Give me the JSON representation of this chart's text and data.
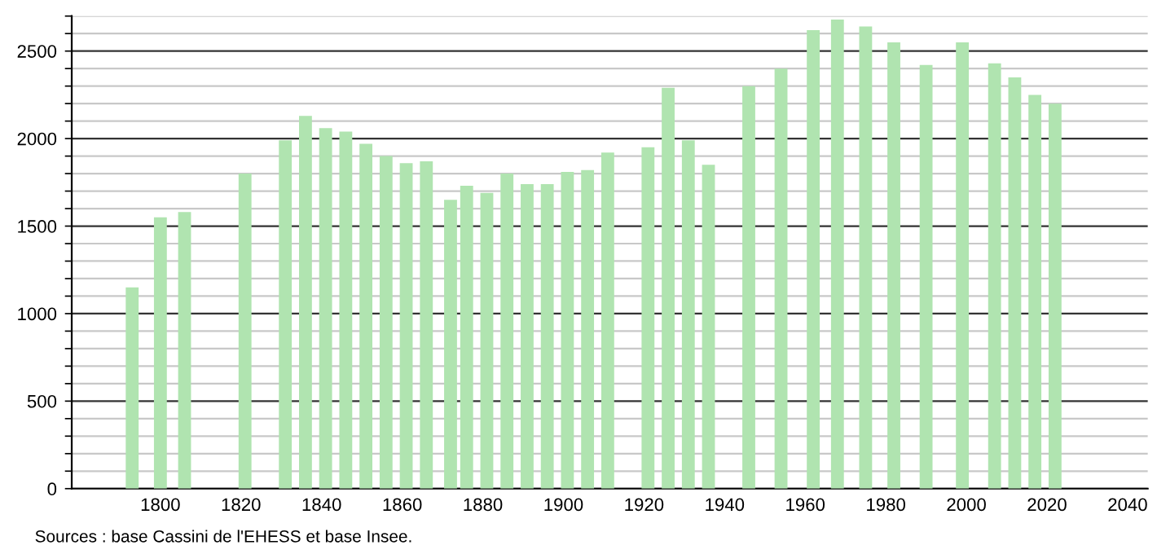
{
  "chart_data": {
    "type": "bar",
    "x": [
      1793,
      1800,
      1806,
      1821,
      1831,
      1836,
      1841,
      1846,
      1851,
      1856,
      1861,
      1866,
      1872,
      1876,
      1881,
      1886,
      1891,
      1896,
      1901,
      1906,
      1911,
      1921,
      1926,
      1931,
      1936,
      1946,
      1954,
      1962,
      1968,
      1975,
      1982,
      1990,
      1999,
      2007,
      2012,
      2017,
      2022
    ],
    "values": [
      1150,
      1550,
      1580,
      1800,
      1990,
      2130,
      2060,
      2040,
      1970,
      1900,
      1860,
      1870,
      1650,
      1730,
      1690,
      1800,
      1740,
      1740,
      1810,
      1820,
      1920,
      1950,
      2290,
      1990,
      1850,
      2300,
      2400,
      2620,
      2680,
      2640,
      2550,
      2420,
      2550,
      2430,
      2350,
      2250,
      2200
    ],
    "color": "#b0e4b0",
    "xlim": [
      1778,
      2045
    ],
    "xticks": [
      1800,
      1820,
      1840,
      1860,
      1880,
      1900,
      1920,
      1940,
      1960,
      1980,
      2000,
      2020,
      2040
    ],
    "ylim": [
      0,
      2700
    ],
    "yticks": [
      0,
      {
        "value": 100,
        "label": null
      },
      {
        "value": 200,
        "label": null
      },
      {
        "value": 300,
        "label": null
      },
      {
        "value": 400,
        "label": null
      },
      500,
      {
        "value": 600,
        "label": null
      },
      {
        "value": 700,
        "label": null
      },
      {
        "value": 800,
        "label": null
      },
      {
        "value": 900,
        "label": null
      },
      1000,
      {
        "value": 1100,
        "label": null
      },
      {
        "value": 1200,
        "label": null
      },
      {
        "value": 1300,
        "label": null
      },
      {
        "value": 1400,
        "label": null
      },
      1500,
      {
        "value": 1600,
        "label": null
      },
      {
        "value": 1700,
        "label": null
      },
      {
        "value": 1800,
        "label": null
      },
      {
        "value": 1900,
        "label": null
      },
      2000,
      {
        "value": 2100,
        "label": null
      },
      {
        "value": 2200,
        "label": null
      },
      {
        "value": 2300,
        "label": null
      },
      {
        "value": 2400,
        "label": null
      },
      2500,
      {
        "value": 2600,
        "label": null
      },
      {
        "value": 2700,
        "label": null
      }
    ],
    "grid": "y",
    "annotations": [
      "Sources : base Cassini de l'EHESS et base Insee."
    ]
  }
}
